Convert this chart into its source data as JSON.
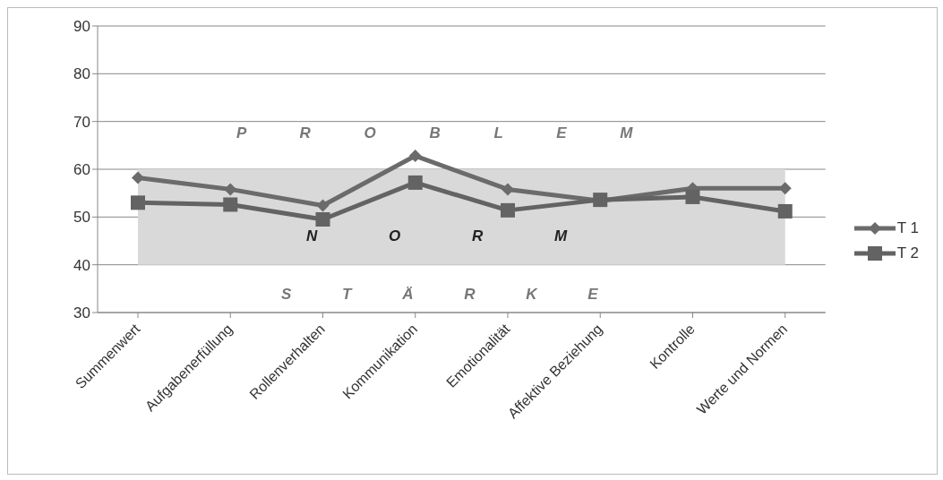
{
  "chart_data": {
    "type": "line",
    "categories": [
      "Summenwert",
      "Aufgabenerfüllung",
      "Rollenverhalten",
      "Kommunikation",
      "Emotionalität",
      "Affektive Beziehung",
      "Kontrolle",
      "Werte und Normen"
    ],
    "series": [
      {
        "name": "T 1",
        "color": "#6b6b6b",
        "marker": "diamond",
        "values": [
          58.2,
          55.8,
          52.4,
          62.8,
          55.8,
          53.4,
          56,
          56
        ]
      },
      {
        "name": "T 2",
        "color": "#636363",
        "marker": "square",
        "values": [
          53,
          52.6,
          49.5,
          57.2,
          51.4,
          53.6,
          54.2,
          51.2
        ]
      }
    ],
    "ylim": [
      30,
      90
    ],
    "yticks": [
      30,
      40,
      50,
      60,
      70,
      80,
      90
    ],
    "grid": "y",
    "legend": "right",
    "bands": [
      {
        "axis": "y",
        "from": 40,
        "to": 60,
        "color": "#d9d9d9"
      }
    ],
    "annotations": [
      "P R O B L E M",
      "N O R M",
      "S T Ä R K E"
    ]
  }
}
